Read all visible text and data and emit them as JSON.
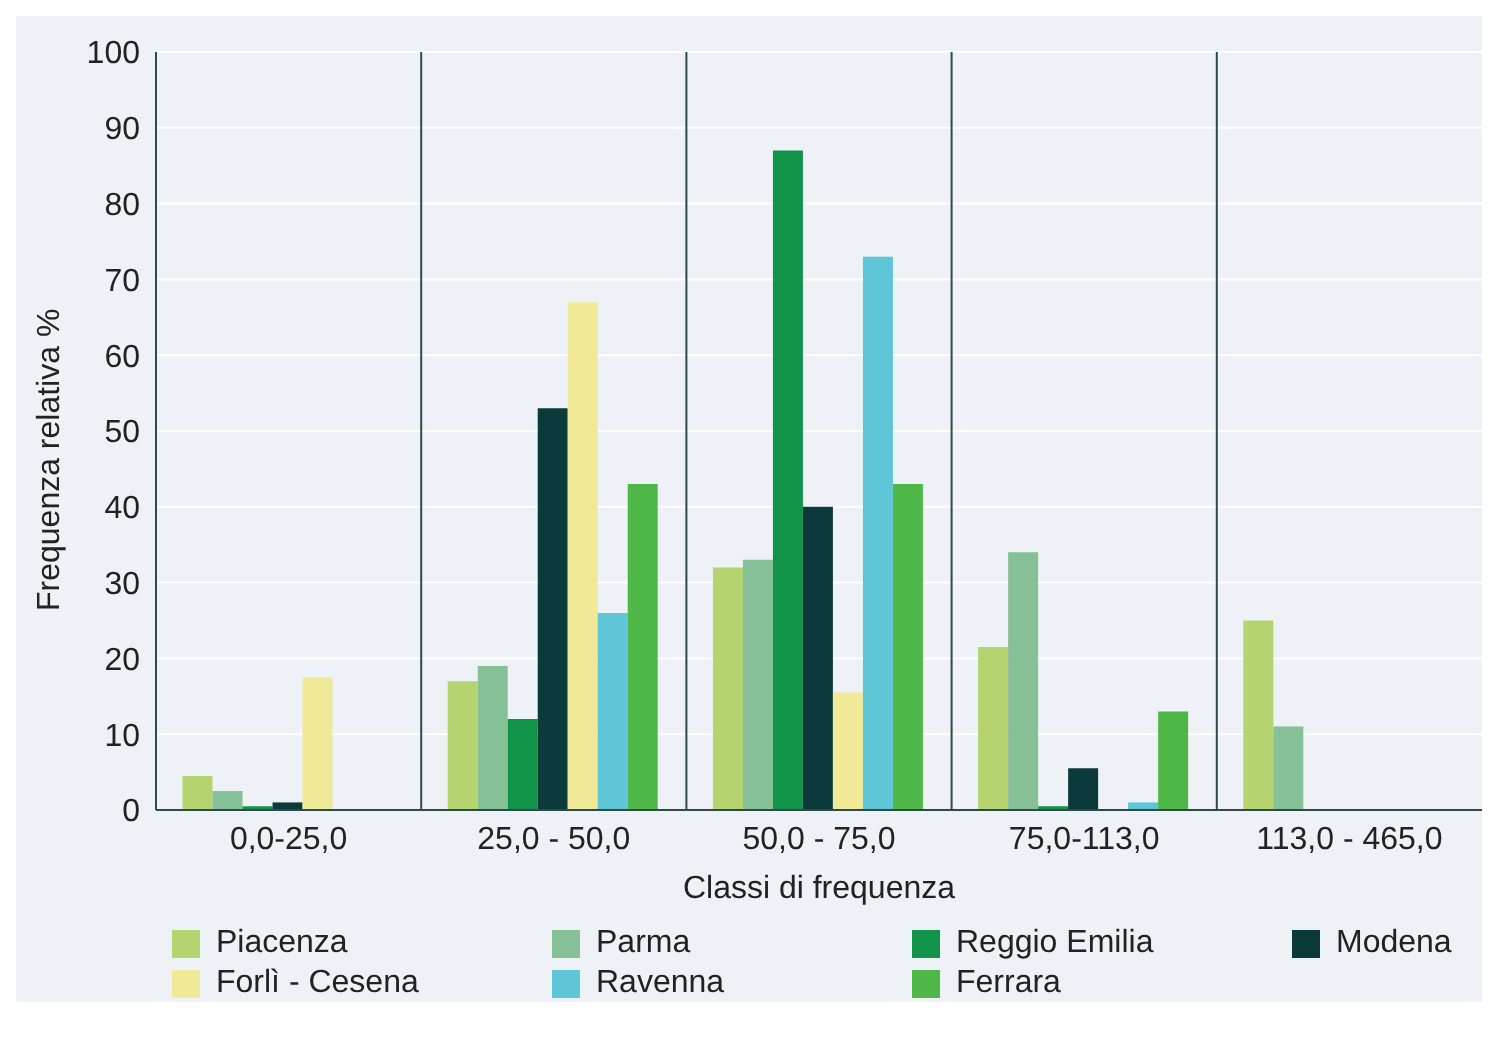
{
  "chart_data": {
    "type": "bar",
    "xlabel": "Classi di frequenza",
    "ylabel": "Frequenza relativa %",
    "categories": [
      "0,0-25,0",
      "25,0 - 50,0",
      "50,0 - 75,0",
      "75,0-113,0",
      "113,0 - 465,0"
    ],
    "series": [
      {
        "name": "Piacenza",
        "color": "#b5d36e",
        "values": [
          4.5,
          17,
          32,
          21.5,
          25
        ]
      },
      {
        "name": "Parma",
        "color": "#86c096",
        "values": [
          2.5,
          19,
          33,
          34,
          11
        ]
      },
      {
        "name": "Reggio Emilia",
        "color": "#12934a",
        "values": [
          0.5,
          12,
          87,
          0.5,
          0
        ]
      },
      {
        "name": "Modena",
        "color": "#0c3a3a",
        "values": [
          1,
          53,
          40,
          5.5,
          0
        ]
      },
      {
        "name": "Forlì - Cesena",
        "color": "#f0ea98",
        "values": [
          17.5,
          67,
          15.5,
          0,
          0
        ]
      },
      {
        "name": "Ravenna",
        "color": "#5ec6d6",
        "values": [
          0,
          26,
          73,
          1,
          0
        ]
      },
      {
        "name": "Ferrara",
        "color": "#4fb848",
        "values": [
          0,
          43,
          43,
          13,
          0
        ]
      }
    ],
    "ylim": [
      0,
      100
    ],
    "yticks": [
      0,
      10,
      20,
      30,
      40,
      50,
      60,
      70,
      80,
      90,
      100
    ],
    "grid": true,
    "legend": "bottom"
  }
}
